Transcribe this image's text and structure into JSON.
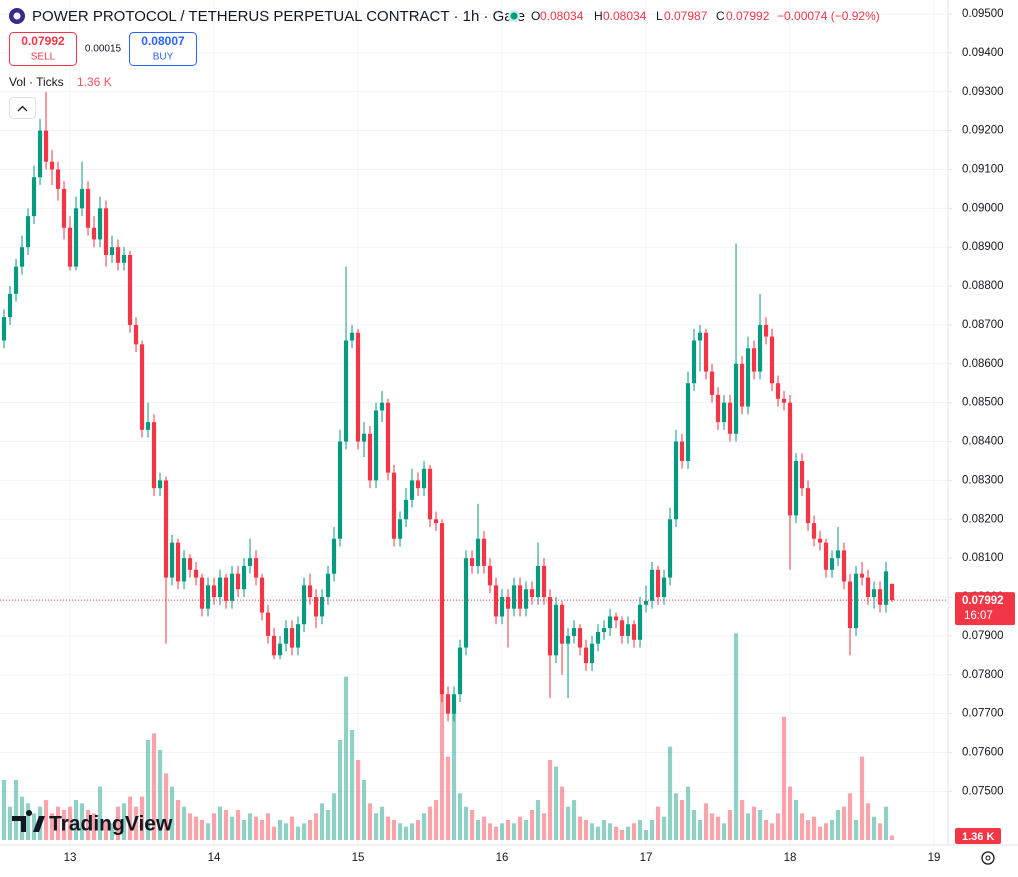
{
  "chart_data": {
    "type": "candlestick",
    "title": "POWER PROTOCOL / TETHERUS PERPETUAL CONTRACT · 1h · Gate",
    "ohlc_labels": [
      "O",
      "H",
      "L",
      "C"
    ],
    "change": "−0.00074 (−0.92%)",
    "trade": {
      "sell": 0.07992,
      "sell_label": "SELL",
      "spread": 0.00015,
      "buy": 0.08007,
      "buy_label": "BUY"
    },
    "countdown": "16:07",
    "up_color": "#089981",
    "down_color": "#f23645",
    "grid": true,
    "xlim": [
      -11.67,
      145.83
    ],
    "xticks": [
      {
        "value": 0,
        "label": "13"
      },
      {
        "value": 24,
        "label": "14"
      },
      {
        "value": 48,
        "label": "15"
      },
      {
        "value": 72,
        "label": "16"
      },
      {
        "value": 96,
        "label": "17"
      },
      {
        "value": 120,
        "label": "18"
      },
      {
        "value": 144,
        "label": "19"
      }
    ],
    "ylim": [
      0.07362,
      0.09536
    ],
    "yticks": [
      {
        "value": 0.095,
        "label": "0.09500"
      },
      {
        "value": 0.094,
        "label": "0.09400"
      },
      {
        "value": 0.093,
        "label": "0.09300"
      },
      {
        "value": 0.092,
        "label": "0.09200"
      },
      {
        "value": 0.091,
        "label": "0.09100"
      },
      {
        "value": 0.09,
        "label": "0.09000"
      },
      {
        "value": 0.089,
        "label": "0.08900"
      },
      {
        "value": 0.088,
        "label": "0.08800"
      },
      {
        "value": 0.087,
        "label": "0.08700"
      },
      {
        "value": 0.086,
        "label": "0.08600"
      },
      {
        "value": 0.085,
        "label": "0.08500"
      },
      {
        "value": 0.084,
        "label": "0.08400"
      },
      {
        "value": 0.083,
        "label": "0.08300"
      },
      {
        "value": 0.082,
        "label": "0.08200"
      },
      {
        "value": 0.081,
        "label": "0.08100"
      },
      {
        "value": 0.08,
        "label": "0.08000"
      },
      {
        "value": 0.079,
        "label": "0.07900"
      },
      {
        "value": 0.078,
        "label": "0.07800"
      },
      {
        "value": 0.077,
        "label": "0.07700"
      },
      {
        "value": 0.076,
        "label": "0.07600"
      },
      {
        "value": 0.075,
        "label": "0.07500"
      }
    ],
    "x": [
      -11,
      -10,
      -9,
      -8,
      -7,
      -6,
      -5,
      -4,
      -3,
      -2,
      -1,
      0,
      1,
      2,
      3,
      4,
      5,
      6,
      7,
      8,
      9,
      10,
      11,
      12,
      13,
      14,
      15,
      16,
      17,
      18,
      19,
      20,
      21,
      22,
      23,
      24,
      25,
      26,
      27,
      28,
      29,
      30,
      31,
      32,
      33,
      34,
      35,
      36,
      37,
      38,
      39,
      40,
      41,
      42,
      43,
      44,
      45,
      46,
      47,
      48,
      49,
      50,
      51,
      52,
      53,
      54,
      55,
      56,
      57,
      58,
      59,
      60,
      61,
      62,
      63,
      64,
      65,
      66,
      67,
      68,
      69,
      70,
      71,
      72,
      73,
      74,
      75,
      76,
      77,
      78,
      79,
      80,
      81,
      82,
      83,
      84,
      85,
      86,
      87,
      88,
      89,
      90,
      91,
      92,
      93,
      94,
      95,
      96,
      97,
      98,
      99,
      100,
      101,
      102,
      103,
      104,
      105,
      106,
      107,
      108,
      109,
      110,
      111,
      112,
      113,
      114,
      115,
      116,
      117,
      118,
      119,
      120,
      121,
      122,
      123,
      124,
      125,
      126,
      127,
      128,
      129,
      130,
      131,
      132,
      133,
      134,
      135,
      136,
      137
    ],
    "candles": [
      [
        0.0866,
        0.0874,
        0.0864,
        0.0872
      ],
      [
        0.0872,
        0.088,
        0.087,
        0.0878
      ],
      [
        0.0878,
        0.0887,
        0.0876,
        0.0885
      ],
      [
        0.0885,
        0.0893,
        0.0883,
        0.089
      ],
      [
        0.089,
        0.09,
        0.0888,
        0.0898
      ],
      [
        0.0898,
        0.0911,
        0.0896,
        0.0908
      ],
      [
        0.0908,
        0.0923,
        0.0906,
        0.092
      ],
      [
        0.092,
        0.093,
        0.091,
        0.0912
      ],
      [
        0.0912,
        0.0915,
        0.0906,
        0.091
      ],
      [
        0.091,
        0.0912,
        0.0902,
        0.0905
      ],
      [
        0.0905,
        0.0907,
        0.0892,
        0.0895
      ],
      [
        0.0895,
        0.0898,
        0.0884,
        0.0885
      ],
      [
        0.0885,
        0.0903,
        0.0884,
        0.09
      ],
      [
        0.09,
        0.0912,
        0.0898,
        0.0905
      ],
      [
        0.0905,
        0.0907,
        0.0893,
        0.0895
      ],
      [
        0.0895,
        0.0898,
        0.089,
        0.0892
      ],
      [
        0.0892,
        0.0903,
        0.089,
        0.09
      ],
      [
        0.09,
        0.0902,
        0.0885,
        0.0888
      ],
      [
        0.0888,
        0.0893,
        0.0886,
        0.089
      ],
      [
        0.089,
        0.0892,
        0.0884,
        0.0886
      ],
      [
        0.0886,
        0.089,
        0.0884,
        0.0888
      ],
      [
        0.0888,
        0.0889,
        0.0868,
        0.087
      ],
      [
        0.087,
        0.0872,
        0.0863,
        0.0865
      ],
      [
        0.0865,
        0.0866,
        0.0841,
        0.0843
      ],
      [
        0.0843,
        0.085,
        0.0841,
        0.0845
      ],
      [
        0.0845,
        0.0847,
        0.0826,
        0.0828
      ],
      [
        0.0828,
        0.0832,
        0.0826,
        0.083
      ],
      [
        0.083,
        0.0831,
        0.0788,
        0.0805
      ],
      [
        0.0805,
        0.0816,
        0.0803,
        0.0814
      ],
      [
        0.0814,
        0.0815,
        0.0802,
        0.0804
      ],
      [
        0.0804,
        0.0812,
        0.0802,
        0.081
      ],
      [
        0.081,
        0.0811,
        0.0805,
        0.0807
      ],
      [
        0.0807,
        0.0809,
        0.0803,
        0.0805
      ],
      [
        0.0805,
        0.0806,
        0.0795,
        0.0797
      ],
      [
        0.0797,
        0.0805,
        0.0795,
        0.0803
      ],
      [
        0.0803,
        0.0805,
        0.0798,
        0.08
      ],
      [
        0.08,
        0.0807,
        0.0798,
        0.0805
      ],
      [
        0.0805,
        0.0806,
        0.0797,
        0.0799
      ],
      [
        0.0799,
        0.0808,
        0.0797,
        0.0806
      ],
      [
        0.0806,
        0.0808,
        0.08,
        0.0802
      ],
      [
        0.0802,
        0.081,
        0.08,
        0.0808
      ],
      [
        0.0808,
        0.0815,
        0.0806,
        0.081
      ],
      [
        0.081,
        0.0812,
        0.0803,
        0.0805
      ],
      [
        0.0805,
        0.0806,
        0.0794,
        0.0796
      ],
      [
        0.0796,
        0.0798,
        0.0788,
        0.079
      ],
      [
        0.079,
        0.0792,
        0.0784,
        0.0785
      ],
      [
        0.0785,
        0.079,
        0.0784,
        0.0788
      ],
      [
        0.0788,
        0.0794,
        0.0786,
        0.0792
      ],
      [
        0.0792,
        0.0794,
        0.0785,
        0.0787
      ],
      [
        0.0787,
        0.0795,
        0.0785,
        0.0793
      ],
      [
        0.0793,
        0.0805,
        0.0791,
        0.0803
      ],
      [
        0.0803,
        0.0806,
        0.0798,
        0.08
      ],
      [
        0.08,
        0.0802,
        0.0792,
        0.0795
      ],
      [
        0.0795,
        0.0802,
        0.0793,
        0.08
      ],
      [
        0.08,
        0.0808,
        0.0798,
        0.0806
      ],
      [
        0.0806,
        0.0818,
        0.0804,
        0.0815
      ],
      [
        0.0815,
        0.0843,
        0.0813,
        0.084
      ],
      [
        0.084,
        0.0885,
        0.0838,
        0.0866
      ],
      [
        0.0866,
        0.087,
        0.0864,
        0.0868
      ],
      [
        0.0868,
        0.0869,
        0.0838,
        0.084
      ],
      [
        0.084,
        0.0845,
        0.0836,
        0.0842
      ],
      [
        0.0842,
        0.0844,
        0.0828,
        0.083
      ],
      [
        0.083,
        0.085,
        0.0828,
        0.0848
      ],
      [
        0.0848,
        0.0853,
        0.0845,
        0.085
      ],
      [
        0.085,
        0.0851,
        0.083,
        0.0832
      ],
      [
        0.0832,
        0.0834,
        0.0813,
        0.0815
      ],
      [
        0.0815,
        0.0822,
        0.0813,
        0.082
      ],
      [
        0.082,
        0.0828,
        0.0818,
        0.0825
      ],
      [
        0.0825,
        0.0833,
        0.0823,
        0.083
      ],
      [
        0.083,
        0.0832,
        0.0826,
        0.0828
      ],
      [
        0.0828,
        0.0835,
        0.0826,
        0.0833
      ],
      [
        0.0833,
        0.0834,
        0.0818,
        0.082
      ],
      [
        0.082,
        0.0822,
        0.0817,
        0.0819
      ],
      [
        0.0819,
        0.082,
        0.0773,
        0.0775
      ],
      [
        0.0775,
        0.0777,
        0.0768,
        0.077
      ],
      [
        0.077,
        0.0777,
        0.0768,
        0.0775
      ],
      [
        0.0775,
        0.0789,
        0.0773,
        0.0787
      ],
      [
        0.0787,
        0.0812,
        0.0785,
        0.081
      ],
      [
        0.081,
        0.0812,
        0.0806,
        0.0808
      ],
      [
        0.0808,
        0.0824,
        0.0806,
        0.0815
      ],
      [
        0.0815,
        0.0817,
        0.0806,
        0.0808
      ],
      [
        0.0808,
        0.081,
        0.0801,
        0.0803
      ],
      [
        0.0803,
        0.0805,
        0.0793,
        0.0795
      ],
      [
        0.0795,
        0.0802,
        0.0793,
        0.08
      ],
      [
        0.08,
        0.0802,
        0.0787,
        0.0797
      ],
      [
        0.0797,
        0.0805,
        0.0795,
        0.0803
      ],
      [
        0.0803,
        0.0805,
        0.0795,
        0.0797
      ],
      [
        0.0797,
        0.0804,
        0.0795,
        0.0802
      ],
      [
        0.0802,
        0.0804,
        0.0798,
        0.08
      ],
      [
        0.08,
        0.0814,
        0.0798,
        0.0808
      ],
      [
        0.0808,
        0.081,
        0.0798,
        0.08
      ],
      [
        0.08,
        0.0802,
        0.0774,
        0.0785
      ],
      [
        0.0785,
        0.08,
        0.0783,
        0.0798
      ],
      [
        0.0798,
        0.0799,
        0.078,
        0.0788
      ],
      [
        0.0788,
        0.0792,
        0.0774,
        0.079
      ],
      [
        0.079,
        0.0794,
        0.0788,
        0.0792
      ],
      [
        0.0792,
        0.0793,
        0.0785,
        0.0787
      ],
      [
        0.0787,
        0.0789,
        0.0781,
        0.0783
      ],
      [
        0.0783,
        0.079,
        0.0781,
        0.0788
      ],
      [
        0.0788,
        0.0793,
        0.0786,
        0.0791
      ],
      [
        0.0791,
        0.0794,
        0.0789,
        0.0792
      ],
      [
        0.0792,
        0.0797,
        0.079,
        0.0795
      ],
      [
        0.0795,
        0.0796,
        0.0792,
        0.0794
      ],
      [
        0.0794,
        0.0795,
        0.0788,
        0.079
      ],
      [
        0.079,
        0.0795,
        0.0788,
        0.0793
      ],
      [
        0.0793,
        0.0794,
        0.0787,
        0.0789
      ],
      [
        0.0789,
        0.08,
        0.0787,
        0.0798
      ],
      [
        0.0798,
        0.0803,
        0.0796,
        0.0799
      ],
      [
        0.0799,
        0.0809,
        0.0797,
        0.0807
      ],
      [
        0.0807,
        0.0808,
        0.0798,
        0.08
      ],
      [
        0.08,
        0.0807,
        0.0798,
        0.0805
      ],
      [
        0.0805,
        0.0823,
        0.0803,
        0.082
      ],
      [
        0.082,
        0.0843,
        0.0818,
        0.084
      ],
      [
        0.084,
        0.0842,
        0.0833,
        0.0835
      ],
      [
        0.0835,
        0.0858,
        0.0833,
        0.0855
      ],
      [
        0.0855,
        0.0869,
        0.0853,
        0.0866
      ],
      [
        0.0866,
        0.087,
        0.0858,
        0.0868
      ],
      [
        0.0868,
        0.0869,
        0.0856,
        0.0858
      ],
      [
        0.0858,
        0.086,
        0.085,
        0.0852
      ],
      [
        0.0852,
        0.0854,
        0.0843,
        0.0845
      ],
      [
        0.0845,
        0.0852,
        0.0843,
        0.085
      ],
      [
        0.085,
        0.0852,
        0.084,
        0.0842
      ],
      [
        0.0842,
        0.0891,
        0.084,
        0.086
      ],
      [
        0.086,
        0.0862,
        0.0847,
        0.0849
      ],
      [
        0.0849,
        0.0867,
        0.0847,
        0.0864
      ],
      [
        0.0864,
        0.0866,
        0.0856,
        0.0858
      ],
      [
        0.0858,
        0.0878,
        0.0856,
        0.087
      ],
      [
        0.087,
        0.0872,
        0.0865,
        0.0867
      ],
      [
        0.0867,
        0.0869,
        0.0853,
        0.0855
      ],
      [
        0.0855,
        0.0857,
        0.0849,
        0.0851
      ],
      [
        0.0851,
        0.0853,
        0.0848,
        0.085
      ],
      [
        0.085,
        0.0852,
        0.0807,
        0.0821
      ],
      [
        0.0821,
        0.0837,
        0.0819,
        0.0835
      ],
      [
        0.0835,
        0.0837,
        0.0826,
        0.0828
      ],
      [
        0.0828,
        0.083,
        0.0817,
        0.0819
      ],
      [
        0.0819,
        0.0821,
        0.0813,
        0.0815
      ],
      [
        0.0815,
        0.0817,
        0.0812,
        0.0814
      ],
      [
        0.0814,
        0.0815,
        0.0805,
        0.0807
      ],
      [
        0.0807,
        0.0812,
        0.0805,
        0.081
      ],
      [
        0.081,
        0.0818,
        0.0808,
        0.0812
      ],
      [
        0.0812,
        0.0814,
        0.0802,
        0.0804
      ],
      [
        0.0804,
        0.0806,
        0.0785,
        0.0792
      ],
      [
        0.0792,
        0.0808,
        0.079,
        0.0806
      ],
      [
        0.0806,
        0.0809,
        0.0803,
        0.0805
      ],
      [
        0.0805,
        0.0807,
        0.0798,
        0.08
      ],
      [
        0.08,
        0.0804,
        0.0797,
        0.0802
      ],
      [
        0.0802,
        0.0804,
        0.0796,
        0.0798
      ],
      [
        0.0798,
        0.0809,
        0.0796,
        0.08066
      ],
      [
        0.08034,
        0.08034,
        0.07987,
        0.07992
      ]
    ],
    "volume": {
      "name": "Vol · Ticks",
      "last_label": "1.36 K",
      "ylim": [
        0,
        75
      ],
      "values": [
        18,
        10,
        18,
        13,
        11,
        8,
        10,
        12,
        8,
        10,
        9,
        10,
        12,
        11,
        9,
        8,
        16,
        6,
        5,
        10,
        11,
        13,
        10,
        13,
        30,
        32,
        27,
        20,
        16,
        12,
        10,
        8,
        7,
        6,
        5,
        8,
        10,
        9,
        7,
        9,
        6,
        8,
        7,
        6,
        8,
        4,
        6,
        5,
        7,
        4,
        5,
        6,
        8,
        11,
        9,
        14,
        30,
        49,
        33,
        24,
        18,
        11,
        8,
        10,
        7,
        6,
        5,
        4,
        5,
        6,
        8,
        10,
        12,
        44,
        25,
        38,
        14,
        10,
        9,
        6,
        7,
        5,
        4,
        5,
        6,
        5,
        7,
        6,
        9,
        12,
        8,
        24,
        22,
        16,
        10,
        12,
        7,
        6,
        5,
        4,
        6,
        5,
        4,
        3,
        4,
        5,
        6,
        3,
        6,
        10,
        7,
        28,
        14,
        12,
        16,
        9,
        6,
        11,
        8,
        7,
        5,
        9,
        62,
        12,
        8,
        10,
        9,
        6,
        5,
        8,
        37,
        16,
        12,
        8,
        6,
        7,
        4,
        5,
        6,
        9,
        10,
        14,
        6,
        25,
        11,
        7,
        5,
        10,
        1.36
      ]
    }
  },
  "watermark": "TradingView"
}
